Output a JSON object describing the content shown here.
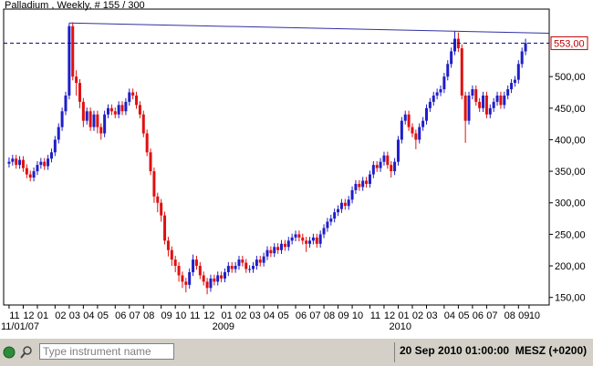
{
  "chart_data": {
    "type": "candlestick",
    "title": "Palladium , Weekly, # 155 / 300",
    "up_color": "#1f1fc8",
    "down_color": "#e01010",
    "ylim": [
      138,
      607
    ],
    "yticks": [
      {
        "value": 150,
        "label": "150,00"
      },
      {
        "value": 200,
        "label": "200,00"
      },
      {
        "value": 250,
        "label": "250,00"
      },
      {
        "value": 300,
        "label": "300,00"
      },
      {
        "value": 350,
        "label": "350,00"
      },
      {
        "value": 400,
        "label": "400,00"
      },
      {
        "value": 450,
        "label": "450,00"
      },
      {
        "value": 500,
        "label": "500,00"
      }
    ],
    "price_line": {
      "value": 553,
      "label": "553,00",
      "color": "#c00000"
    },
    "trend_line": {
      "from": [
        17,
        585
      ],
      "to": [
        126,
        572
      ],
      "color": "#3030a0"
    },
    "xticks": [
      {
        "value": 0,
        "label": "11"
      },
      {
        "value": 4,
        "label": "12"
      },
      {
        "value": 8,
        "label": "01"
      },
      {
        "value": 13,
        "label": "02"
      },
      {
        "value": 17,
        "label": "03"
      },
      {
        "value": 21,
        "label": "04"
      },
      {
        "value": 25,
        "label": "05"
      },
      {
        "value": 30,
        "label": "06"
      },
      {
        "value": 34,
        "label": "07"
      },
      {
        "value": 38,
        "label": "08"
      },
      {
        "value": 43,
        "label": "09"
      },
      {
        "value": 47,
        "label": "10"
      },
      {
        "value": 51,
        "label": "11"
      },
      {
        "value": 55,
        "label": "12"
      },
      {
        "value": 60,
        "label": "01"
      },
      {
        "value": 64,
        "label": "02"
      },
      {
        "value": 68,
        "label": "03"
      },
      {
        "value": 72,
        "label": "04"
      },
      {
        "value": 76,
        "label": "05"
      },
      {
        "value": 81,
        "label": "06"
      },
      {
        "value": 85,
        "label": "07"
      },
      {
        "value": 89,
        "label": "08"
      },
      {
        "value": 93,
        "label": "09"
      },
      {
        "value": 97,
        "label": "10"
      },
      {
        "value": 102,
        "label": "11"
      },
      {
        "value": 106,
        "label": "12"
      },
      {
        "value": 110,
        "label": "01"
      },
      {
        "value": 114,
        "label": "02"
      },
      {
        "value": 118,
        "label": "03"
      },
      {
        "value": 123,
        "label": "04"
      },
      {
        "value": 127,
        "label": "05"
      },
      {
        "value": 131,
        "label": "06"
      },
      {
        "value": 135,
        "label": "07"
      },
      {
        "value": 140,
        "label": "08"
      },
      {
        "value": 144,
        "label": "09"
      },
      {
        "value": 147,
        "label": "10"
      }
    ],
    "year_labels": [
      {
        "value": 0,
        "label": "11/01/07"
      },
      {
        "value": 60,
        "label": "2009"
      },
      {
        "value": 110,
        "label": "2010"
      }
    ],
    "series": [
      {
        "name": "Palladium",
        "values": [
          [
            362,
            372,
            356,
            365
          ],
          [
            365,
            376,
            359,
            370
          ],
          [
            370,
            376,
            354,
            360
          ],
          [
            360,
            374,
            354,
            368
          ],
          [
            368,
            374,
            349,
            355
          ],
          [
            355,
            361,
            339,
            345
          ],
          [
            345,
            351,
            334,
            340
          ],
          [
            340,
            356,
            334,
            350
          ],
          [
            350,
            366,
            344,
            360
          ],
          [
            360,
            371,
            354,
            365
          ],
          [
            365,
            371,
            352,
            358
          ],
          [
            358,
            376,
            352,
            370
          ],
          [
            370,
            386,
            364,
            380
          ],
          [
            380,
            406,
            374,
            400
          ],
          [
            400,
            426,
            394,
            420
          ],
          [
            420,
            451,
            414,
            445
          ],
          [
            445,
            476,
            439,
            470
          ],
          [
            470,
            585,
            464,
            580
          ],
          [
            580,
            586,
            494,
            500
          ],
          [
            500,
            510,
            470,
            490
          ],
          [
            490,
            496,
            450,
            460
          ],
          [
            460,
            466,
            420,
            430
          ],
          [
            430,
            451,
            424,
            445
          ],
          [
            445,
            451,
            414,
            420
          ],
          [
            420,
            446,
            414,
            440
          ],
          [
            440,
            446,
            410,
            420
          ],
          [
            420,
            426,
            400,
            410
          ],
          [
            410,
            446,
            404,
            440
          ],
          [
            440,
            456,
            434,
            450
          ],
          [
            450,
            456,
            439,
            445
          ],
          [
            445,
            451,
            434,
            440
          ],
          [
            440,
            461,
            434,
            455
          ],
          [
            455,
            461,
            439,
            445
          ],
          [
            445,
            466,
            439,
            460
          ],
          [
            460,
            481,
            454,
            475
          ],
          [
            475,
            481,
            464,
            470
          ],
          [
            470,
            476,
            449,
            455
          ],
          [
            455,
            461,
            434,
            440
          ],
          [
            440,
            446,
            404,
            410
          ],
          [
            410,
            416,
            374,
            380
          ],
          [
            380,
            386,
            344,
            350
          ],
          [
            350,
            356,
            300,
            310
          ],
          [
            310,
            316,
            285,
            300
          ],
          [
            300,
            306,
            270,
            280
          ],
          [
            280,
            286,
            234,
            240
          ],
          [
            240,
            246,
            215,
            225
          ],
          [
            225,
            231,
            200,
            210
          ],
          [
            210,
            216,
            190,
            200
          ],
          [
            200,
            206,
            175,
            185
          ],
          [
            185,
            191,
            165,
            175
          ],
          [
            175,
            181,
            158,
            170
          ],
          [
            170,
            196,
            164,
            190
          ],
          [
            190,
            218,
            184,
            210
          ],
          [
            210,
            216,
            194,
            200
          ],
          [
            200,
            206,
            179,
            185
          ],
          [
            185,
            191,
            169,
            175
          ],
          [
            175,
            181,
            155,
            165
          ],
          [
            165,
            186,
            159,
            180
          ],
          [
            180,
            186,
            169,
            175
          ],
          [
            175,
            191,
            169,
            185
          ],
          [
            185,
            191,
            174,
            180
          ],
          [
            180,
            196,
            174,
            190
          ],
          [
            190,
            206,
            184,
            200
          ],
          [
            200,
            206,
            189,
            195
          ],
          [
            195,
            206,
            189,
            200
          ],
          [
            200,
            216,
            194,
            210
          ],
          [
            210,
            216,
            199,
            205
          ],
          [
            205,
            211,
            189,
            195
          ],
          [
            195,
            201,
            189,
            195
          ],
          [
            195,
            206,
            189,
            200
          ],
          [
            200,
            216,
            194,
            210
          ],
          [
            210,
            216,
            199,
            205
          ],
          [
            205,
            221,
            199,
            215
          ],
          [
            215,
            231,
            209,
            225
          ],
          [
            225,
            231,
            214,
            220
          ],
          [
            220,
            236,
            214,
            230
          ],
          [
            230,
            236,
            219,
            225
          ],
          [
            225,
            241,
            219,
            235
          ],
          [
            235,
            241,
            224,
            230
          ],
          [
            230,
            246,
            224,
            240
          ],
          [
            240,
            251,
            234,
            245
          ],
          [
            245,
            256,
            239,
            250
          ],
          [
            250,
            256,
            239,
            245
          ],
          [
            245,
            251,
            234,
            240
          ],
          [
            240,
            246,
            222,
            235
          ],
          [
            235,
            246,
            229,
            240
          ],
          [
            240,
            251,
            234,
            245
          ],
          [
            245,
            251,
            229,
            235
          ],
          [
            235,
            256,
            229,
            250
          ],
          [
            250,
            266,
            244,
            260
          ],
          [
            260,
            276,
            254,
            270
          ],
          [
            270,
            281,
            264,
            275
          ],
          [
            275,
            291,
            269,
            285
          ],
          [
            285,
            296,
            279,
            290
          ],
          [
            290,
            306,
            284,
            300
          ],
          [
            300,
            306,
            289,
            295
          ],
          [
            295,
            311,
            289,
            305
          ],
          [
            305,
            326,
            299,
            320
          ],
          [
            320,
            336,
            314,
            330
          ],
          [
            330,
            336,
            319,
            325
          ],
          [
            325,
            341,
            319,
            335
          ],
          [
            335,
            341,
            324,
            330
          ],
          [
            330,
            351,
            324,
            345
          ],
          [
            345,
            366,
            339,
            360
          ],
          [
            360,
            366,
            349,
            355
          ],
          [
            355,
            371,
            349,
            365
          ],
          [
            365,
            381,
            359,
            375
          ],
          [
            375,
            381,
            354,
            360
          ],
          [
            360,
            366,
            340,
            350
          ],
          [
            350,
            371,
            344,
            365
          ],
          [
            365,
            406,
            359,
            400
          ],
          [
            400,
            436,
            394,
            430
          ],
          [
            430,
            446,
            424,
            440
          ],
          [
            440,
            446,
            414,
            420
          ],
          [
            420,
            426,
            404,
            410
          ],
          [
            410,
            416,
            385,
            400
          ],
          [
            400,
            426,
            394,
            420
          ],
          [
            420,
            436,
            414,
            430
          ],
          [
            430,
            456,
            424,
            450
          ],
          [
            450,
            466,
            444,
            460
          ],
          [
            460,
            476,
            454,
            470
          ],
          [
            470,
            481,
            464,
            475
          ],
          [
            475,
            486,
            469,
            480
          ],
          [
            480,
            506,
            474,
            500
          ],
          [
            500,
            526,
            494,
            520
          ],
          [
            520,
            546,
            514,
            540
          ],
          [
            540,
            572,
            534,
            560
          ],
          [
            560,
            570,
            539,
            545
          ],
          [
            545,
            551,
            464,
            470
          ],
          [
            470,
            476,
            395,
            430
          ],
          [
            430,
            476,
            424,
            470
          ],
          [
            470,
            486,
            464,
            480
          ],
          [
            480,
            486,
            454,
            460
          ],
          [
            460,
            466,
            444,
            450
          ],
          [
            450,
            476,
            444,
            470
          ],
          [
            470,
            476,
            434,
            440
          ],
          [
            440,
            456,
            434,
            450
          ],
          [
            450,
            466,
            444,
            460
          ],
          [
            460,
            476,
            454,
            470
          ],
          [
            470,
            476,
            449,
            455
          ],
          [
            455,
            476,
            449,
            470
          ],
          [
            470,
            486,
            464,
            480
          ],
          [
            480,
            496,
            474,
            490
          ],
          [
            490,
            501,
            484,
            495
          ],
          [
            495,
            526,
            489,
            520
          ],
          [
            520,
            546,
            514,
            540
          ],
          [
            540,
            560,
            534,
            553
          ]
        ]
      }
    ]
  },
  "status_bar": {
    "search_placeholder": "Type instrument name",
    "datetime": "20 Sep 2010 01:00:00  MESZ (+0200)"
  }
}
